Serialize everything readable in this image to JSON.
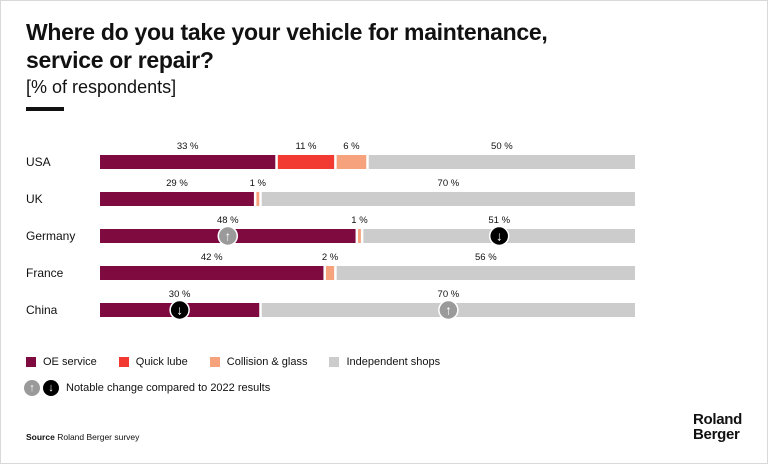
{
  "title": "Where do you take your vehicle for maintenance, service or repair?",
  "subtitle": "[% of respondents]",
  "colors": {
    "oe_service": "#7f0a3f",
    "quick_lube": "#f23a33",
    "collision_glass": "#f6a37d",
    "independent_shops": "#cccccc",
    "arrow_up": "#9a9a9a",
    "arrow_down": "#000000"
  },
  "chart_data": {
    "type": "bar",
    "orientation": "horizontal",
    "stacked": true,
    "categories": [
      "USA",
      "UK",
      "Germany",
      "France",
      "China"
    ],
    "series": [
      {
        "name": "OE service",
        "values": [
          33,
          29,
          48,
          42,
          30
        ]
      },
      {
        "name": "Quick lube",
        "values": [
          11,
          0,
          0,
          0,
          0
        ]
      },
      {
        "name": "Collision & glass",
        "values": [
          6,
          1,
          1,
          2,
          0
        ]
      },
      {
        "name": "Independent shops",
        "values": [
          50,
          70,
          51,
          56,
          70
        ]
      }
    ],
    "labels": [
      [
        "33 %",
        "11 %",
        "6 %",
        "50 %"
      ],
      [
        "29 %",
        "",
        "1 %",
        "70 %"
      ],
      [
        "48 %",
        "",
        "1 %",
        "51 %"
      ],
      [
        "42 %",
        "",
        "2 %",
        "56 %"
      ],
      [
        "30 %",
        "",
        "",
        "70 %"
      ]
    ],
    "markers": [
      {
        "country": "Germany",
        "series": "OE service",
        "direction": "up"
      },
      {
        "country": "Germany",
        "series": "Independent shops",
        "direction": "down"
      },
      {
        "country": "China",
        "series": "OE service",
        "direction": "down"
      },
      {
        "country": "China",
        "series": "Independent shops",
        "direction": "up"
      }
    ],
    "xlim": [
      0,
      100
    ]
  },
  "legend": {
    "items": [
      {
        "label": "OE service",
        "color": "#7f0a3f"
      },
      {
        "label": "Quick lube",
        "color": "#f23a33"
      },
      {
        "label": "Collision & glass",
        "color": "#f6a37d"
      },
      {
        "label": "Independent shops",
        "color": "#cccccc"
      }
    ],
    "up_symbol": "↑",
    "down_symbol": "↓",
    "note": "Notable change compared to 2022 results"
  },
  "source": {
    "label": "Source",
    "text": "Roland Berger survey"
  },
  "logo": {
    "line1": "Roland",
    "line2": "Berger"
  }
}
